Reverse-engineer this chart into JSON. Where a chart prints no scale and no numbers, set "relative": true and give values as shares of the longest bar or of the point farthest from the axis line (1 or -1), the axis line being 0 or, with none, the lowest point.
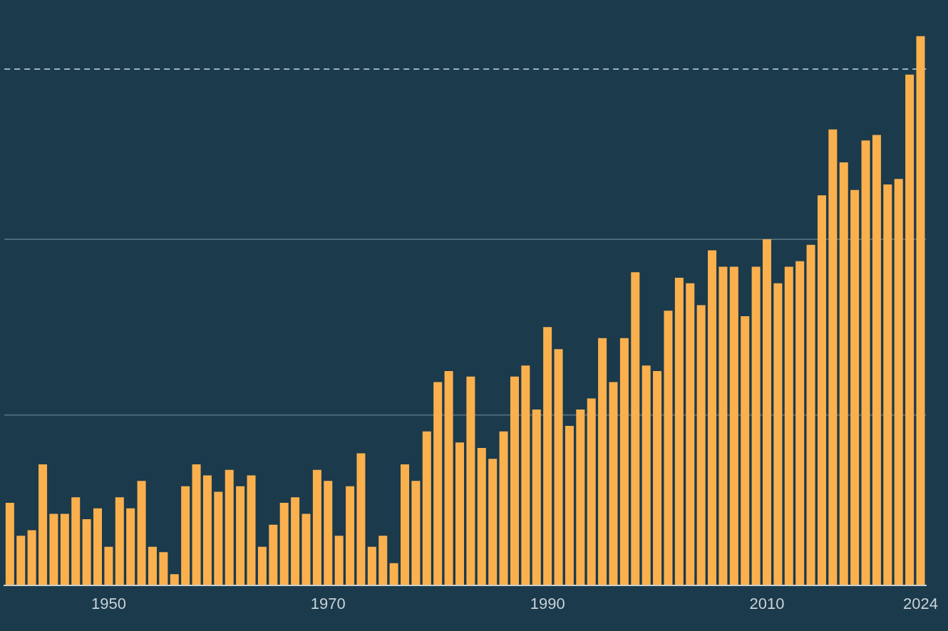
{
  "chart_data": {
    "type": "bar",
    "relative": true,
    "color": "#fbb04e",
    "categories": [
      null,
      null,
      null,
      null,
      null,
      null,
      null,
      null,
      null,
      "1950",
      null,
      null,
      null,
      null,
      null,
      null,
      null,
      null,
      null,
      null,
      null,
      null,
      null,
      null,
      null,
      null,
      null,
      null,
      null,
      "1970",
      null,
      null,
      null,
      null,
      null,
      null,
      null,
      null,
      null,
      null,
      null,
      null,
      null,
      null,
      null,
      null,
      null,
      null,
      null,
      "1990",
      null,
      null,
      null,
      null,
      null,
      null,
      null,
      null,
      null,
      null,
      null,
      null,
      null,
      null,
      null,
      null,
      null,
      null,
      null,
      "2010",
      null,
      null,
      null,
      null,
      null,
      null,
      null,
      null,
      null,
      null,
      null,
      null,
      null,
      "2024"
    ],
    "values": [
      0.15,
      0.09,
      0.1,
      0.22,
      0.13,
      0.13,
      0.16,
      0.12,
      0.14,
      0.07,
      0.16,
      0.14,
      0.19,
      0.07,
      0.06,
      0.02,
      0.18,
      0.22,
      0.2,
      0.17,
      0.21,
      0.18,
      0.2,
      0.07,
      0.11,
      0.15,
      0.16,
      0.13,
      0.21,
      0.19,
      0.09,
      0.18,
      0.24,
      0.07,
      0.09,
      0.04,
      0.22,
      0.19,
      0.28,
      0.37,
      0.39,
      0.26,
      0.38,
      0.25,
      0.23,
      0.28,
      0.38,
      0.4,
      0.32,
      0.47,
      0.43,
      0.29,
      0.32,
      0.34,
      0.45,
      0.37,
      0.45,
      0.57,
      0.4,
      0.39,
      0.5,
      0.56,
      0.55,
      0.51,
      0.61,
      0.58,
      0.58,
      0.49,
      0.58,
      0.63,
      0.55,
      0.58,
      0.59,
      0.62,
      0.71,
      0.83,
      0.77,
      0.72,
      0.81,
      0.82,
      0.73,
      0.74,
      0.93,
      1
    ],
    "ref_lines": [
      {
        "axis": "y",
        "value": 0.31,
        "color": "#4d6a78"
      },
      {
        "axis": "y",
        "value": 0.63,
        "color": "#4d6a78"
      },
      {
        "axis": "y",
        "value": 0.94,
        "color": "#9fb3bd",
        "line_style": "dashed"
      }
    ]
  }
}
